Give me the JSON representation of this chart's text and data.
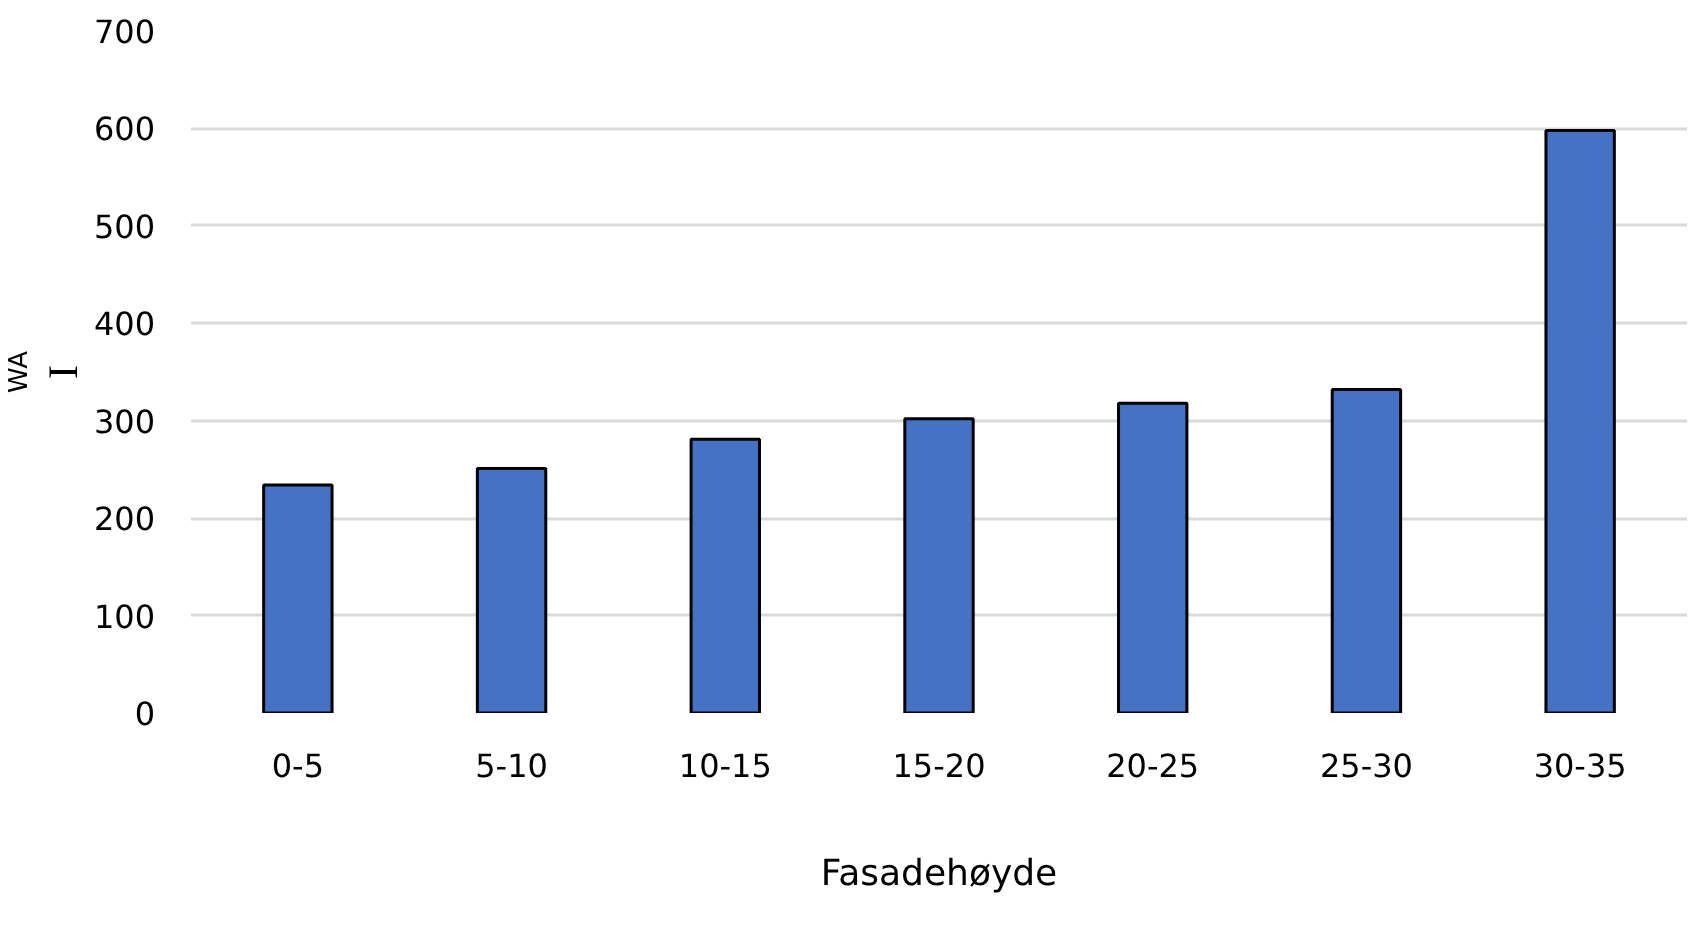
{
  "chart_data": {
    "type": "bar",
    "xlabel": "Fasadehøyde",
    "ylabel": "I$_{WA}$",
    "categories": [
      "0-5",
      "5-10",
      "10-15",
      "15-20",
      "20-25",
      "25-30",
      "30-35"
    ],
    "values": [
      234,
      251,
      281,
      302,
      318,
      332,
      598
    ],
    "color": "#4472c4",
    "ylim": [
      0,
      700
    ],
    "yticks": [
      0,
      100,
      200,
      300,
      400,
      500,
      600,
      700
    ],
    "grid": "y"
  }
}
